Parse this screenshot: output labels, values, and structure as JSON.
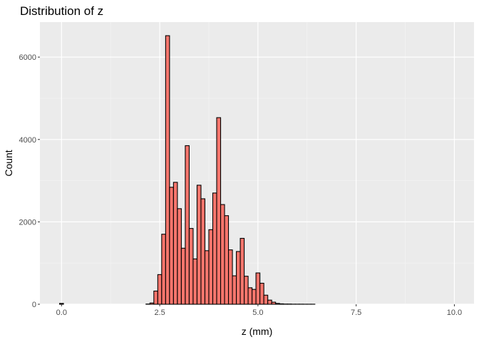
{
  "chart_data": {
    "type": "bar",
    "title": "Distribution of z",
    "xlabel": "z (mm)",
    "ylabel": "Count",
    "xlim": [
      -0.55,
      10.5
    ],
    "ylim": [
      0,
      6850
    ],
    "x_ticks": [
      0.0,
      2.5,
      5.0,
      7.5,
      10.0
    ],
    "x_tick_labels": [
      "0.0",
      "2.5",
      "5.0",
      "7.5",
      "10.0"
    ],
    "y_ticks": [
      0,
      2000,
      4000,
      6000
    ],
    "y_tick_labels": [
      "0",
      "2000",
      "4000",
      "6000"
    ],
    "grid": true,
    "bin_width": 0.1,
    "bin_centers": [
      0.0,
      0.1,
      0.2,
      0.3,
      0.4,
      0.5,
      0.6,
      0.7,
      0.8,
      0.9,
      1.0,
      1.1,
      1.2,
      1.3,
      1.4,
      1.5,
      1.6,
      1.7,
      1.8,
      1.9,
      2.0,
      2.1,
      2.2,
      2.3,
      2.4,
      2.5,
      2.6,
      2.7,
      2.8,
      2.9,
      3.0,
      3.1,
      3.2,
      3.3,
      3.4,
      3.5,
      3.6,
      3.7,
      3.8,
      3.9,
      4.0,
      4.1,
      4.2,
      4.3,
      4.4,
      4.5,
      4.6,
      4.7,
      4.8,
      4.9,
      5.0,
      5.1,
      5.2,
      5.3,
      5.4,
      5.5,
      5.6,
      5.7,
      5.8,
      5.9,
      6.0,
      6.1,
      6.2,
      6.3,
      6.4,
      6.5,
      6.6,
      6.7,
      6.8,
      6.9,
      7.0,
      7.1,
      7.2,
      7.3,
      7.4,
      7.5,
      7.6,
      7.7,
      7.8,
      7.9,
      8.0,
      8.1,
      8.2,
      8.3,
      8.4,
      8.5,
      8.6,
      8.7,
      8.8,
      8.9,
      9.0,
      9.1,
      9.2,
      9.3,
      9.4,
      9.5,
      9.6,
      9.7,
      9.8,
      9.9,
      10.0,
      10.1,
      10.2,
      10.3,
      10.4
    ],
    "values": [
      20,
      0,
      0,
      0,
      0,
      0,
      0,
      0,
      0,
      0,
      0,
      0,
      0,
      0,
      0,
      0,
      0,
      0,
      0,
      0,
      0,
      0,
      5,
      30,
      320,
      720,
      1700,
      6520,
      2840,
      2960,
      2320,
      1360,
      3850,
      1840,
      1100,
      2890,
      2560,
      1300,
      1810,
      2700,
      4530,
      2420,
      2150,
      1320,
      690,
      1280,
      1600,
      680,
      400,
      360,
      760,
      510,
      220,
      100,
      50,
      20,
      10,
      5,
      5,
      2,
      2,
      2,
      1,
      1,
      1,
      0,
      0,
      0,
      0,
      0,
      0,
      0,
      0,
      0,
      0,
      0,
      0,
      0,
      0,
      0,
      0,
      0,
      0,
      0,
      0,
      0,
      0,
      0,
      0,
      0,
      0,
      0,
      0,
      0,
      0,
      0,
      0,
      0,
      0,
      0,
      0,
      0,
      0,
      0,
      0
    ],
    "colors": {
      "fill": "#f8766d",
      "stroke": "#000000",
      "panel": "#ebebeb",
      "grid_major": "#ffffff",
      "grid_minor": "#f5f5f5"
    }
  }
}
